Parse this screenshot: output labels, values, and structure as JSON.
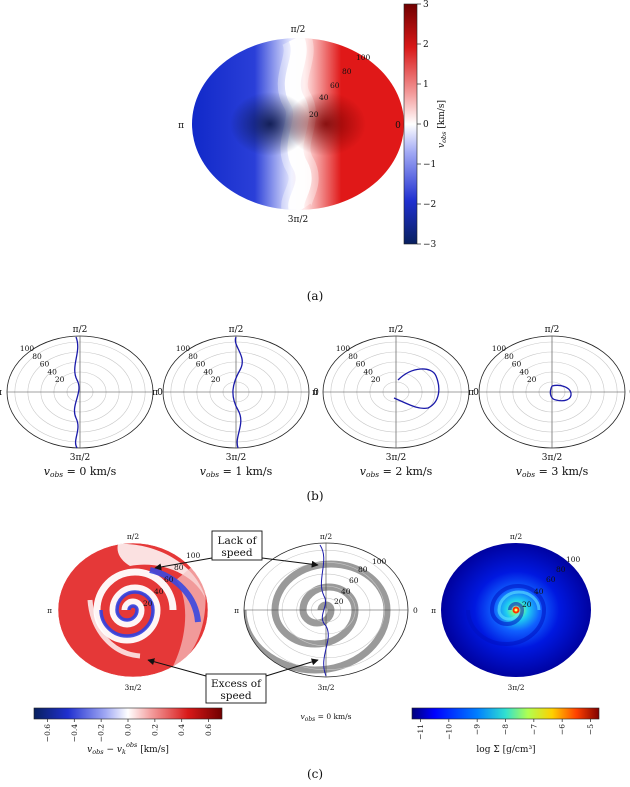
{
  "captions": [
    "(a)",
    "(b)",
    "(c)"
  ],
  "chart_data": [
    {
      "type": "heatmap",
      "panel": "(a)",
      "projection": "polar",
      "angle_labels": [
        "π/2",
        "π",
        "0",
        "3π/2"
      ],
      "radial_ticks": [
        "20",
        "40",
        "60",
        "80",
        "100"
      ],
      "colorbar": {
        "label": "v_obs [km/s]",
        "label_main": "v",
        "label_sub": "obs",
        "label_unit": " [km/s]",
        "ticks": [
          "3",
          "2",
          "1",
          "0",
          "−1",
          "−2",
          "−3"
        ],
        "range": [
          -3,
          3
        ],
        "colors": [
          "#08205e",
          "#2a3fd8",
          "#8a93f2",
          "#ffffff",
          "#f29090",
          "#e01818",
          "#700000"
        ]
      }
    },
    {
      "type": "line",
      "panel": "(b)",
      "projection": "polar",
      "angle_labels": [
        "π/2",
        "π",
        "0",
        "3π/2"
      ],
      "radial_ticks": [
        "20",
        "40",
        "60",
        "80",
        "100"
      ],
      "line_color": "#1a1aaa",
      "subplots": [
        {
          "label_main": "v",
          "label_sub": "obs",
          "label_tail": " = 0 km/s",
          "v_obs": 0
        },
        {
          "label_main": "v",
          "label_sub": "obs",
          "label_tail": " = 1 km/s",
          "v_obs": 1
        },
        {
          "label_main": "v",
          "label_sub": "obs",
          "label_tail": " = 2 km/s",
          "v_obs": 2
        },
        {
          "label_main": "v",
          "label_sub": "obs",
          "label_tail": " = 3 km/s",
          "v_obs": 3
        }
      ]
    },
    {
      "type": "heatmap",
      "panel": "(c)",
      "projection": "polar",
      "subplots": [
        {
          "name": "residual",
          "angle_labels": [
            "π/2",
            "π",
            "3π/2"
          ],
          "radial_ticks": [
            "20",
            "40",
            "60",
            "80",
            "100"
          ],
          "colorbar": {
            "label_main": "v",
            "label_sub": "obs",
            "label_minus": " − v",
            "label_sub2": "k",
            "label_sup2": "obs",
            "label_unit": "  [km/s]",
            "ticks": [
              "−0.6",
              "−0.4",
              "−0.2",
              "0.0",
              "0.2",
              "0.4",
              "0.6"
            ],
            "range": [
              -0.7,
              0.7
            ],
            "colors": [
              "#08205e",
              "#2a3fd8",
              "#8a93f2",
              "#ffffff",
              "#f29090",
              "#e01818",
              "#700000"
            ]
          }
        },
        {
          "name": "contour",
          "angle_labels": [
            "π/2",
            "π",
            "0",
            "3π/2"
          ],
          "radial_ticks": [
            "20",
            "40",
            "60",
            "80",
            "100"
          ],
          "caption": "v_obs = 0 km/s",
          "caption_main": "v",
          "caption_sub": "obs",
          "caption_tail": " = 0 km/s"
        },
        {
          "name": "density",
          "angle_labels": [
            "π/2",
            "π",
            "3π/2"
          ],
          "radial_ticks": [
            "20",
            "40",
            "60",
            "80",
            "100"
          ],
          "colorbar": {
            "label": "log Σ [g/cm³]",
            "ticks": [
              "−11",
              "−10",
              "−9",
              "−8",
              "−7",
              "−6",
              "−5"
            ],
            "range": [
              -11.3,
              -4.7
            ],
            "colors": [
              "#00007a",
              "#0000ff",
              "#0080ff",
              "#20e0e0",
              "#a0ff60",
              "#ffd000",
              "#ff5000",
              "#800000"
            ]
          }
        }
      ],
      "annotations": [
        {
          "name": "lack-of-speed",
          "lines": [
            "Lack of",
            "speed"
          ]
        },
        {
          "name": "excess-of-speed",
          "lines": [
            "Excess of",
            "speed"
          ]
        }
      ]
    }
  ]
}
